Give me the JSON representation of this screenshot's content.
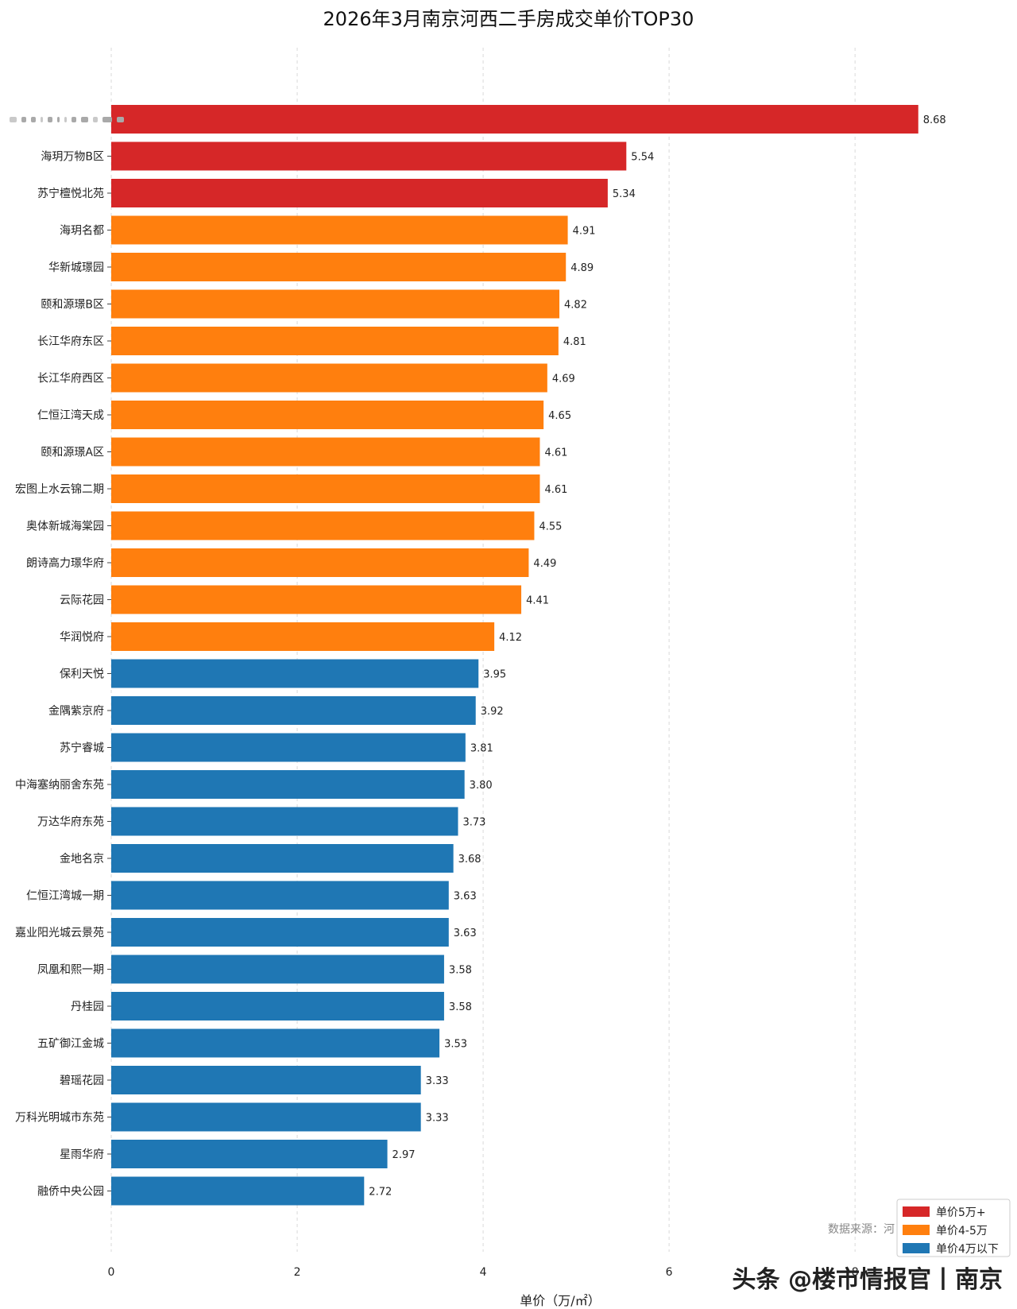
{
  "chart_data": {
    "type": "bar",
    "orientation": "horizontal",
    "title": "2026年3月南京河西二手房成交单价TOP30",
    "xlabel": "单价（万/㎡）",
    "ylabel": "",
    "xlim": [
      0,
      9.4
    ],
    "xticks": [
      0,
      2,
      4,
      6,
      8
    ],
    "grid": "x-dashed",
    "categories": [
      "",
      "海玥万物B区",
      "苏宁檀悦北苑",
      "海玥名都",
      "华新城璟园",
      "颐和源璟B区",
      "长江华府东区",
      "长江华府西区",
      "仁恒江湾天成",
      "颐和源璟A区",
      "宏图上水云锦二期",
      "奥体新城海棠园",
      "朗诗高力璟华府",
      "云际花园",
      "华润悦府",
      "保利天悦",
      "金隅紫京府",
      "苏宁睿城",
      "中海塞纳丽舍东苑",
      "万达华府东苑",
      "金地名京",
      "仁恒江湾城一期",
      "嘉业阳光城云景苑",
      "凤凰和熙一期",
      "丹桂园",
      "五矿御江金城",
      "碧瑶花园",
      "万科光明城市东苑",
      "星雨华府",
      "融侨中央公园"
    ],
    "values": [
      8.68,
      5.54,
      5.34,
      4.91,
      4.89,
      4.82,
      4.81,
      4.69,
      4.65,
      4.61,
      4.61,
      4.55,
      4.49,
      4.41,
      4.12,
      3.95,
      3.92,
      3.81,
      3.8,
      3.73,
      3.68,
      3.63,
      3.63,
      3.58,
      3.58,
      3.53,
      3.33,
      3.33,
      2.97,
      2.72
    ],
    "value_labels": [
      "8.68",
      "5.54",
      "5.34",
      "4.91",
      "4.89",
      "4.82",
      "4.81",
      "4.69",
      "4.65",
      "4.61",
      "4.61",
      "4.55",
      "4.49",
      "4.41",
      "4.12",
      "3.95",
      "3.92",
      "3.81",
      "3.80",
      "3.73",
      "3.68",
      "3.63",
      "3.63",
      "3.58",
      "3.58",
      "3.53",
      "3.33",
      "3.33",
      "2.97",
      "2.72"
    ],
    "legend": {
      "placement": "bottom-right",
      "entries": [
        {
          "label": "单价5万+",
          "color": "#d62728",
          "min": 5
        },
        {
          "label": "单价4-5万",
          "color": "#ff7f0e",
          "min": 4
        },
        {
          "label": "单价4万以下",
          "color": "#1f77b4",
          "min": 0
        }
      ]
    },
    "source_note": "数据来源：河",
    "watermark": "头条 @楼市情报官丨南京"
  }
}
